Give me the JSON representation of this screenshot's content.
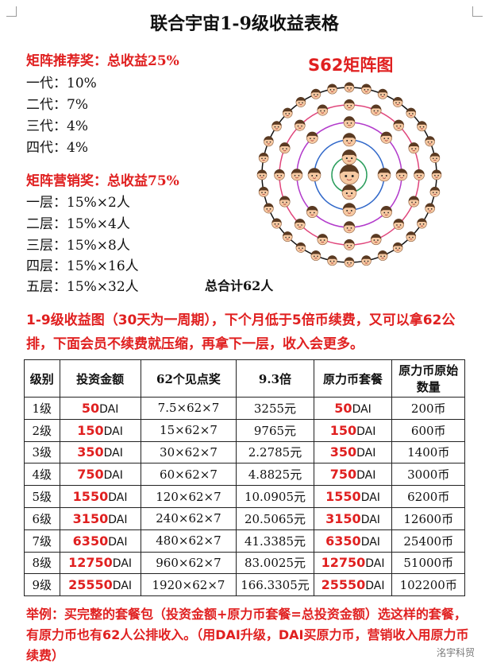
{
  "title": "联合宇宙1-9级收益表格",
  "matrix_referral": {
    "heading": "矩阵推荐奖：总收益25%",
    "items": [
      "一代：10%",
      "二代：7%",
      "三代：4%",
      "四代：4%"
    ]
  },
  "matrix_marketing": {
    "heading": "矩阵营销奖：总收益75%",
    "items": [
      "一层：15%×2人",
      "二层：15%×4人",
      "三层：15%×8人",
      "四层：15%×16人",
      "五层：15%×32人"
    ],
    "total": "总合计62人"
  },
  "diagram": {
    "title": "S62矩阵图",
    "ring_counts": [
      1,
      2,
      4,
      8,
      16,
      32
    ],
    "ring_colors": [
      "#000000",
      "#2a9d5c",
      "#2f67c9",
      "#b23acb",
      "#e0457b",
      "#111111"
    ]
  },
  "intro_text": "1-9级收益图（30天为一周期），下个月低于5倍币续费，又可以拿62公排，下面会员不续费就压缩，再拿下一层，收入会更多。",
  "table": {
    "headers": [
      "级别",
      "投资金额",
      "62个见点奖",
      "9.3倍",
      "原力币套餐",
      "原力币原始数量"
    ],
    "unit_dai": "DAI",
    "rows": [
      {
        "level": "1级",
        "invest": "50",
        "reward": "7.5×62×7",
        "multiple": "3255元",
        "package": "50",
        "coins": "200币"
      },
      {
        "level": "2级",
        "invest": "150",
        "reward": "15×62×7",
        "multiple": "9765元",
        "package": "150",
        "coins": "600币"
      },
      {
        "level": "3级",
        "invest": "350",
        "reward": "30×62×7",
        "multiple": "2.2785元",
        "package": "350",
        "coins": "1400币"
      },
      {
        "level": "4级",
        "invest": "750",
        "reward": "60×62×7",
        "multiple": "4.8825元",
        "package": "750",
        "coins": "3000币"
      },
      {
        "level": "5级",
        "invest": "1550",
        "reward": "120×62×7",
        "multiple": "10.0905元",
        "package": "1550",
        "coins": "6200币"
      },
      {
        "level": "6级",
        "invest": "3150",
        "reward": "240×62×7",
        "multiple": "20.5065元",
        "package": "3150",
        "coins": "12600币"
      },
      {
        "level": "7级",
        "invest": "6350",
        "reward": "480×62×7",
        "multiple": "41.3385元",
        "package": "6350",
        "coins": "25400币"
      },
      {
        "level": "8级",
        "invest": "12750",
        "reward": "960×62×7",
        "multiple": "83.0025元",
        "package": "12750",
        "coins": "51000币"
      },
      {
        "level": "9级",
        "invest": "25550",
        "reward": "1920×62×7",
        "multiple": "166.3305元",
        "package": "25550",
        "coins": "102200币"
      }
    ]
  },
  "footer_text": "举例：买完整的套餐包（投资金额+原力币套餐=总投资金额）选这样的套餐，有原力币也有62人公排收入。（用DAI升级，DAI买原力币，营销收入用原力币续费）",
  "watermark": "洺宇科贸"
}
